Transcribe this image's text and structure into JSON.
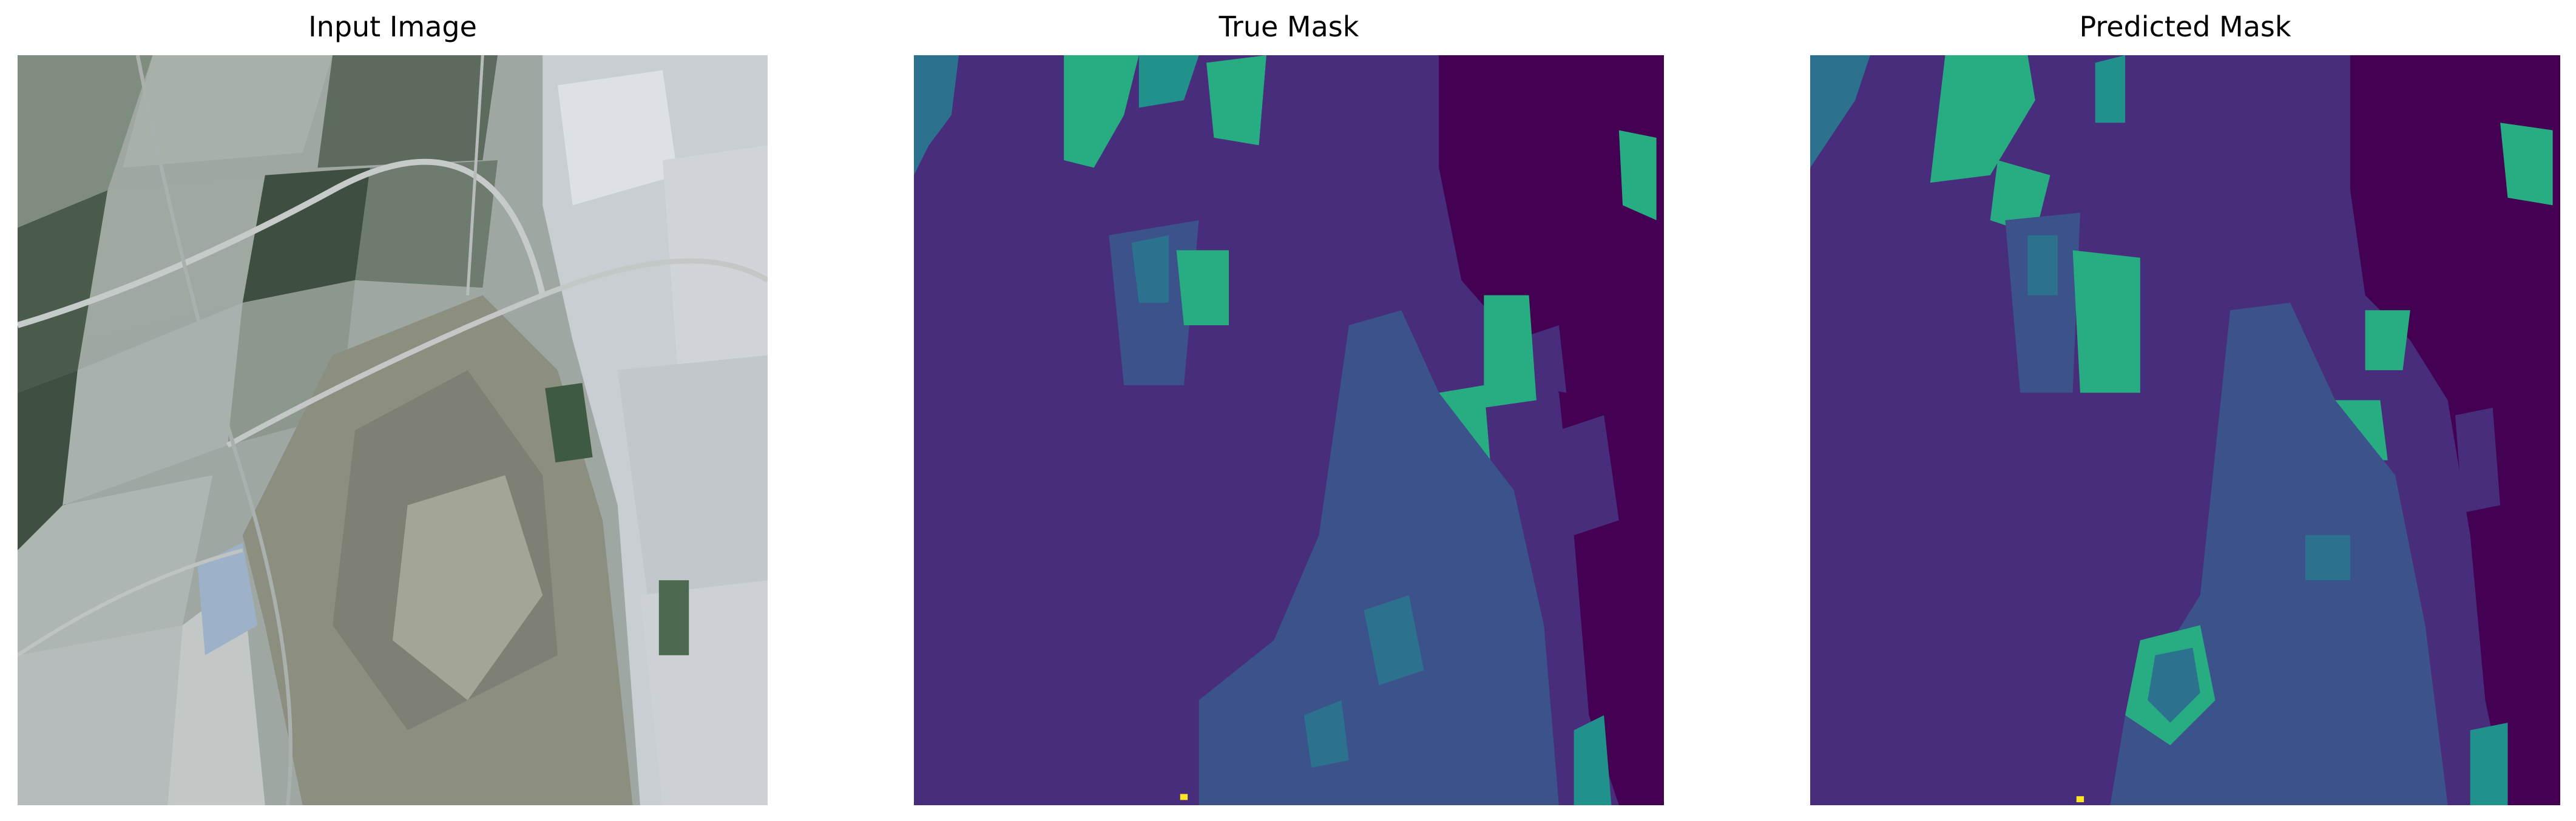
{
  "panels": [
    {
      "title": "Input Image"
    },
    {
      "title": "True Mask"
    },
    {
      "title": "Predicted Mask"
    }
  ],
  "colors": {
    "class_0_dark_purple": "#440154",
    "class_1_indigo": "#472d7b",
    "class_2_steel_blue": "#3b528b",
    "class_3_teal": "#2c728e",
    "class_4_sea_green": "#21918c",
    "class_5_green": "#27ad81",
    "class_6_yellow": "#fde725",
    "satellite_field_light": "#b4bcb6",
    "satellite_field_dark": "#3a4a3c",
    "satellite_urban": "#d4d8dc",
    "satellite_forest": "#8a8c7e"
  }
}
